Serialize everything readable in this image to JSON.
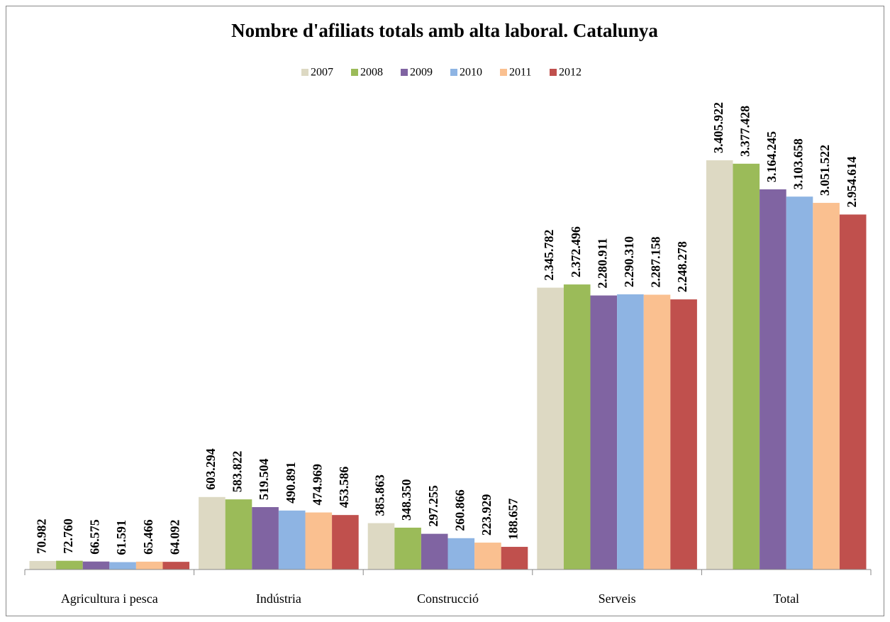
{
  "chart_data": {
    "type": "bar",
    "title": "Nombre d'afiliats totals amb alta laboral. Catalunya",
    "categories": [
      "Agricultura i pesca",
      "Indústria",
      "Construcció",
      "Serveis",
      "Total"
    ],
    "legend": "top",
    "series": [
      {
        "name": "2007",
        "color": "#ddd9c3",
        "values": [
          70982,
          603294,
          385863,
          2345782,
          3405922
        ],
        "value_labels": [
          "70.982",
          "603.294",
          "385.863",
          "2.345.782",
          "3.405.922"
        ]
      },
      {
        "name": "2008",
        "color": "#9bbb59",
        "values": [
          72760,
          583822,
          348350,
          2372496,
          3377428
        ],
        "value_labels": [
          "72.760",
          "583.822",
          "348.350",
          "2.372.496",
          "3.377.428"
        ]
      },
      {
        "name": "2009",
        "color": "#8064a2",
        "values": [
          66575,
          519504,
          297255,
          2280911,
          3164245
        ],
        "value_labels": [
          "66.575",
          "519.504",
          "297.255",
          "2.280.911",
          "3.164.245"
        ]
      },
      {
        "name": "2010",
        "color": "#8eb4e3",
        "values": [
          61591,
          490891,
          260866,
          2290310,
          3103658
        ],
        "value_labels": [
          "61.591",
          "490.891",
          "260.866",
          "2.290.310",
          "3.103.658"
        ]
      },
      {
        "name": "2011",
        "color": "#fac090",
        "values": [
          65466,
          474969,
          223929,
          2287158,
          3051522
        ],
        "value_labels": [
          "65.466",
          "474.969",
          "223.929",
          "2.287.158",
          "3.051.522"
        ]
      },
      {
        "name": "2012",
        "color": "#c0504d",
        "values": [
          64092,
          453586,
          188657,
          2248278,
          2954614
        ],
        "value_labels": [
          "64.092",
          "453.586",
          "188.657",
          "2.248.278",
          "2.954.614"
        ]
      }
    ]
  }
}
